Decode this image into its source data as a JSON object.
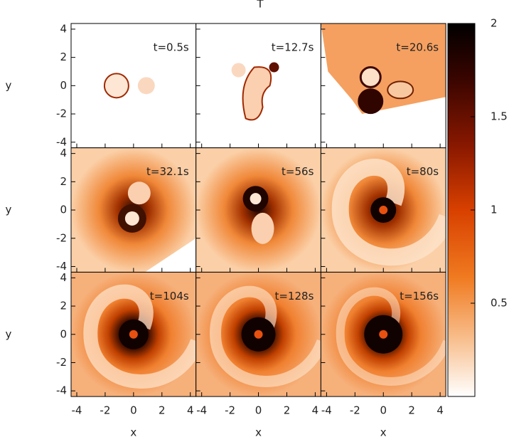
{
  "figure": {
    "colorbar_label": "T",
    "colorbar_range": [
      0,
      2
    ],
    "colorbar_ticks": [
      0.5,
      1,
      1.5,
      2
    ],
    "xlabel": "x",
    "ylabel": "y",
    "xlim": [
      -4.4,
      4.4
    ],
    "ylim": [
      -4.4,
      4.4
    ],
    "xticks": [
      -4,
      -2,
      0,
      2,
      4
    ],
    "yticks": [
      -4,
      -2,
      0,
      2,
      4
    ],
    "panels": [
      {
        "label": "t=0.5s"
      },
      {
        "label": "t=12.7s"
      },
      {
        "label": "t=20.6s"
      },
      {
        "label": "t=32.1s"
      },
      {
        "label": "t=56s"
      },
      {
        "label": "t=80s"
      },
      {
        "label": "t=104s"
      },
      {
        "label": "t=128s"
      },
      {
        "label": "t=156s"
      }
    ]
  }
}
